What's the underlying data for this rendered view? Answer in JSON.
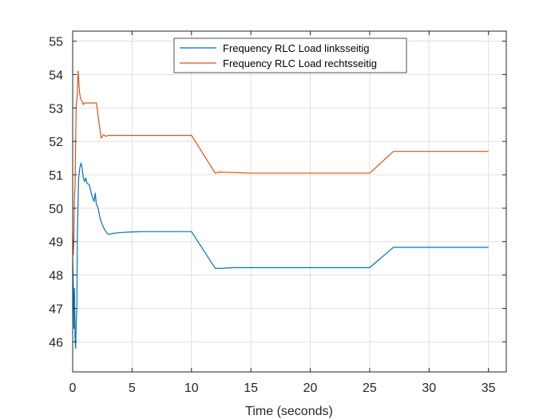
{
  "chart_data": {
    "type": "line",
    "title": "",
    "xlabel": "Time (seconds)",
    "ylabel": "",
    "xlim": [
      0,
      36.5
    ],
    "ylim": [
      45.1,
      55.3
    ],
    "xticks": [
      0,
      5,
      10,
      15,
      20,
      25,
      30,
      35
    ],
    "yticks": [
      46,
      47,
      48,
      49,
      50,
      51,
      52,
      53,
      54,
      55
    ],
    "grid": true,
    "legend_position": "top-center",
    "series": [
      {
        "name": "Frequency RLC Load linksseitig",
        "color": "#0072BD",
        "x": [
          0.0,
          0.05,
          0.1,
          0.15,
          0.2,
          0.25,
          0.3,
          0.35,
          0.4,
          0.5,
          0.6,
          0.7,
          0.8,
          0.9,
          1.0,
          1.1,
          1.2,
          1.4,
          1.6,
          1.8,
          1.9,
          2.0,
          2.1,
          2.2,
          2.3,
          2.5,
          2.7,
          2.9,
          3.0,
          3.5,
          4.0,
          5.0,
          6.0,
          8.0,
          10.0,
          12.0,
          12.5,
          13.5,
          15.0,
          20.0,
          25.0,
          27.0,
          30.0,
          35.0
        ],
        "y": [
          48.5,
          47.7,
          46.4,
          47.6,
          46.1,
          45.8,
          46.6,
          47.0,
          49.3,
          50.9,
          51.2,
          51.35,
          51.2,
          50.9,
          50.8,
          50.9,
          50.75,
          50.7,
          50.4,
          50.2,
          50.45,
          50.1,
          50.05,
          49.9,
          49.7,
          49.5,
          49.35,
          49.25,
          49.22,
          49.25,
          49.27,
          49.29,
          49.3,
          49.3,
          49.3,
          48.2,
          48.2,
          48.22,
          48.22,
          48.22,
          48.22,
          48.83,
          48.83,
          48.83
        ]
      },
      {
        "name": "Frequency RLC Load rechtsseitig",
        "color": "#D95319",
        "x": [
          0.0,
          0.05,
          0.1,
          0.15,
          0.2,
          0.25,
          0.3,
          0.35,
          0.4,
          0.45,
          0.5,
          0.55,
          0.6,
          0.7,
          0.8,
          0.9,
          1.0,
          1.2,
          1.5,
          2.0,
          2.2,
          2.4,
          2.6,
          2.8,
          3.0,
          3.5,
          4.0,
          5.0,
          10.0,
          12.0,
          12.3,
          15.0,
          20.0,
          25.0,
          27.0,
          30.0,
          35.0
        ],
        "y": [
          49.3,
          48.6,
          49.0,
          50.4,
          50.6,
          52.0,
          53.1,
          53.2,
          53.5,
          54.1,
          53.9,
          53.6,
          53.4,
          53.25,
          53.2,
          53.1,
          53.15,
          53.15,
          53.15,
          53.15,
          52.6,
          52.1,
          52.2,
          52.15,
          52.18,
          52.18,
          52.18,
          52.18,
          52.18,
          51.05,
          51.08,
          51.05,
          51.05,
          51.05,
          51.7,
          51.7,
          51.7
        ]
      }
    ]
  }
}
